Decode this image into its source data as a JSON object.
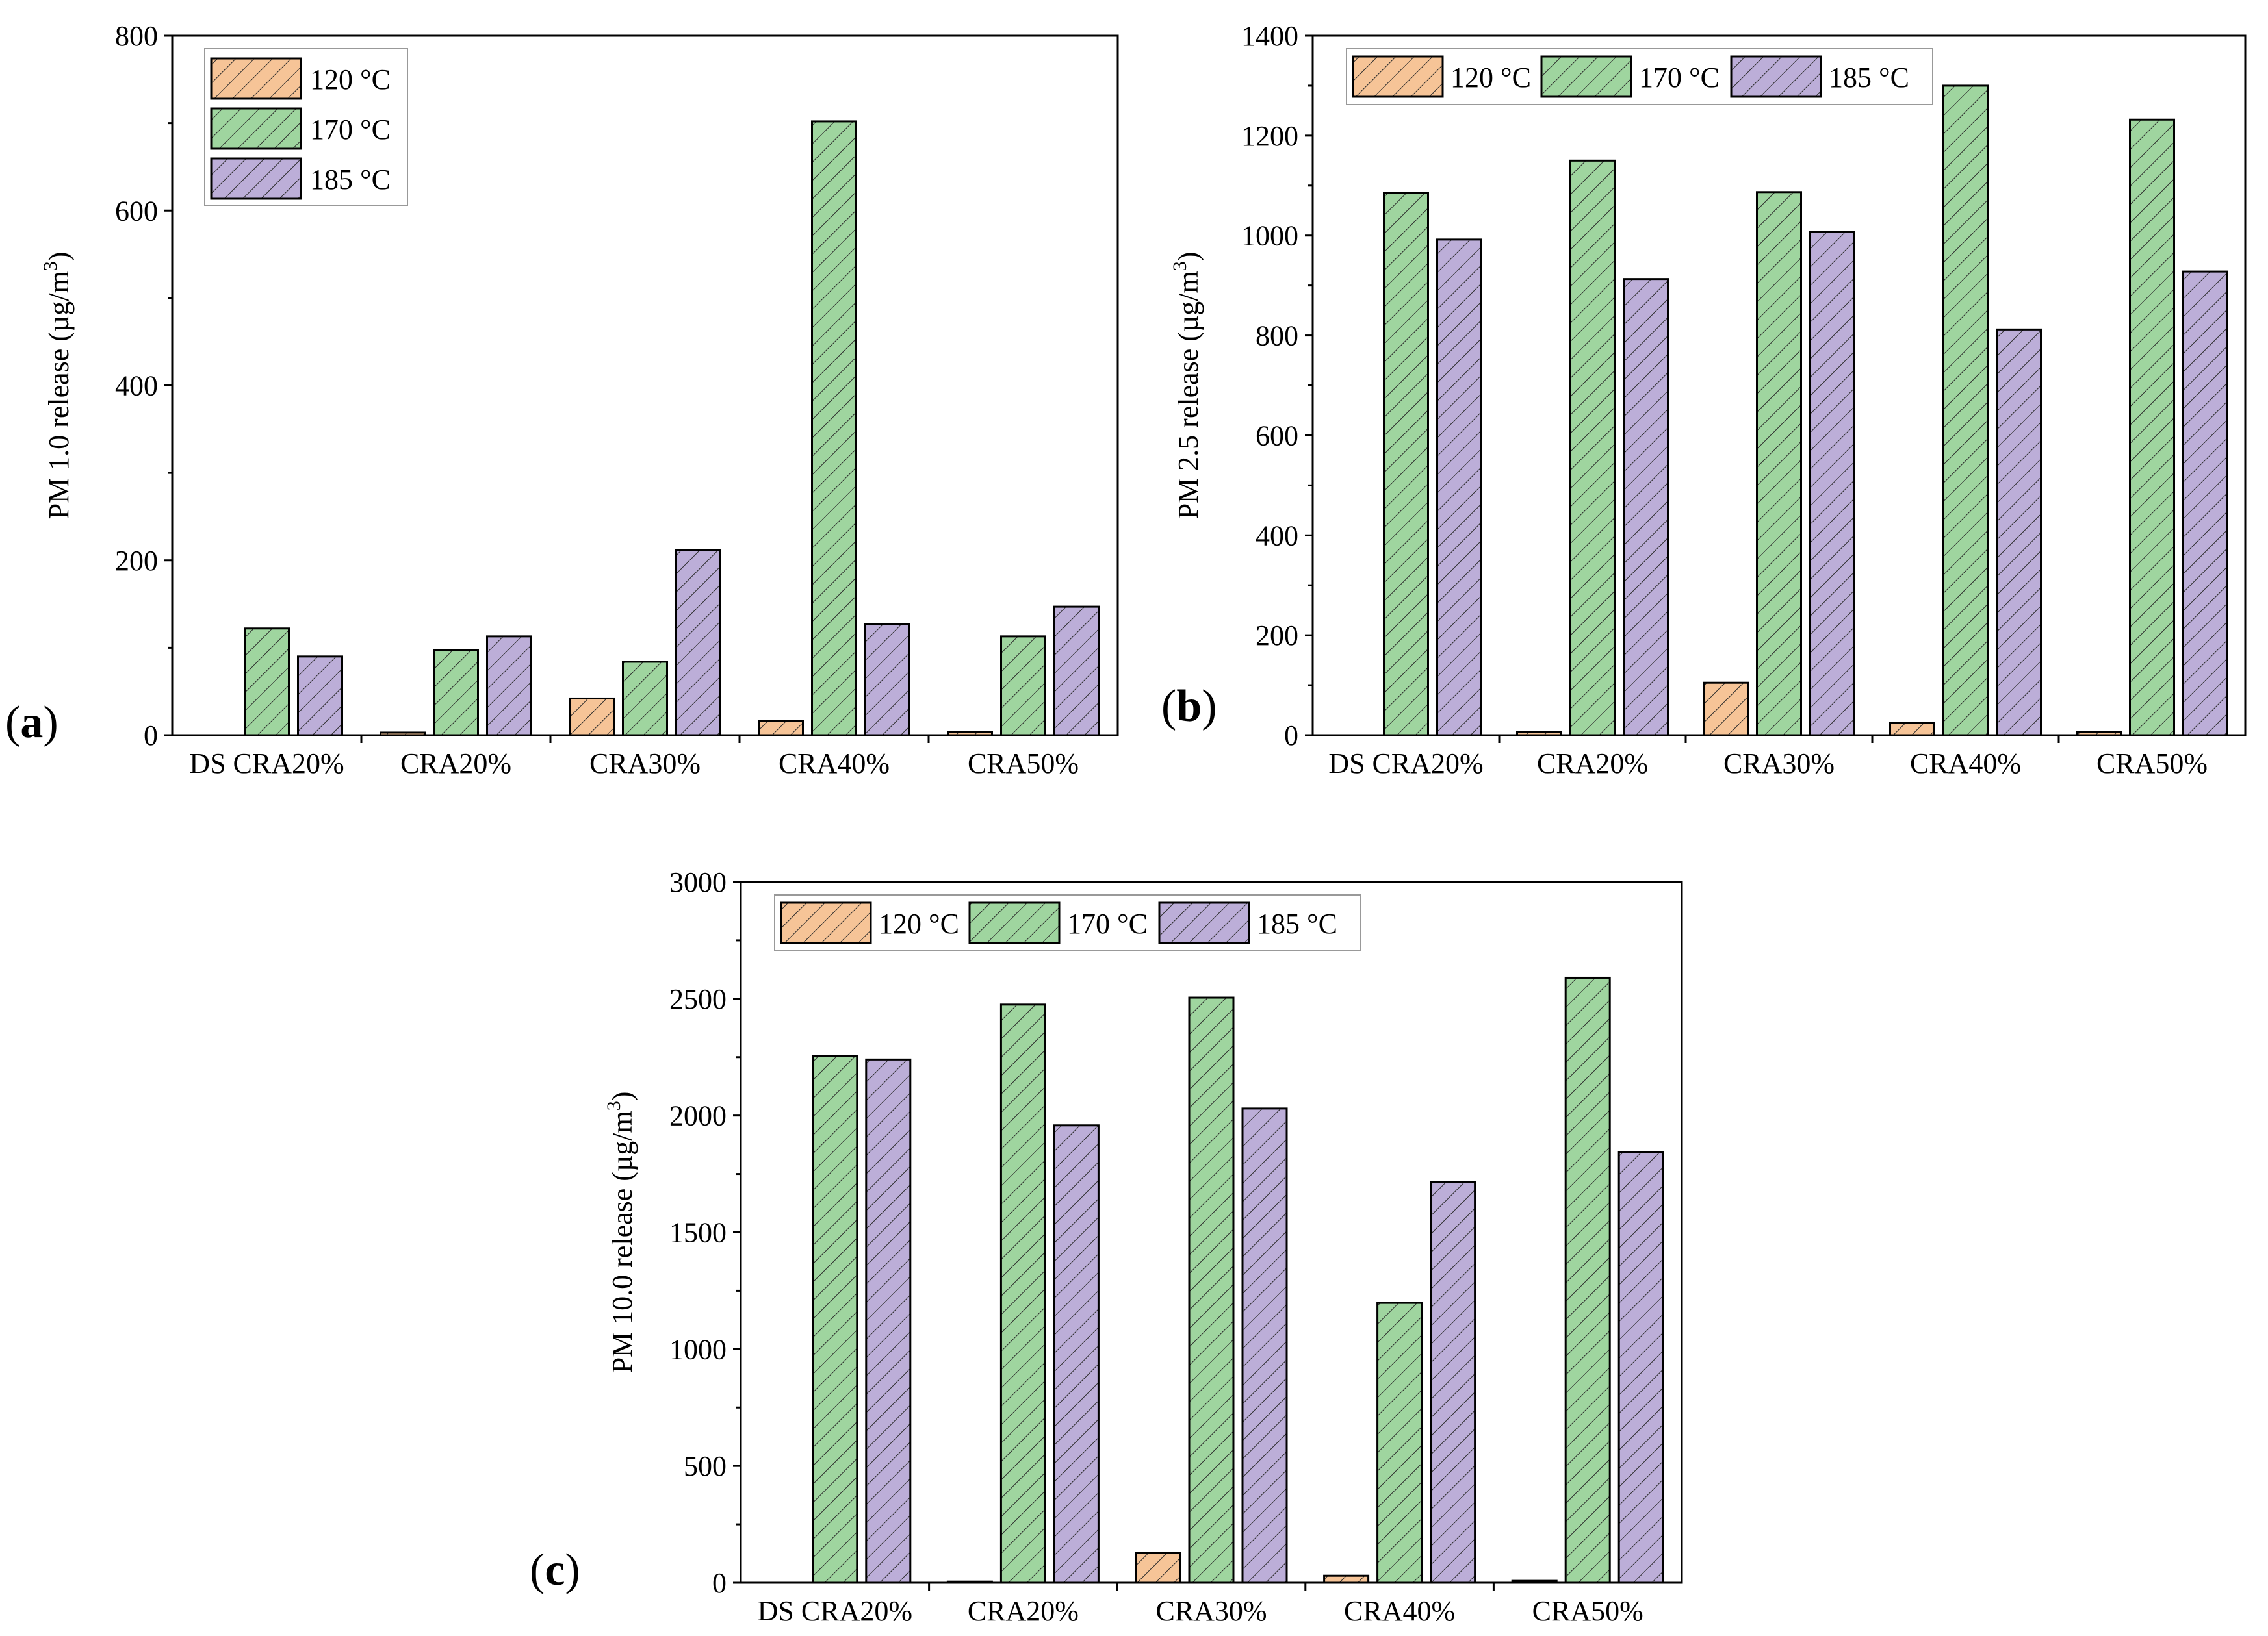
{
  "figure": {
    "background": "#ffffff"
  },
  "legend": [
    {
      "label": "120 °C",
      "color": "#f6c497"
    },
    {
      "label": "170 °C",
      "color": "#9fd59f"
    },
    {
      "label": "185 °C",
      "color": "#bcaed8"
    }
  ],
  "chart_data": [
    {
      "id": "a",
      "panel_label": {
        "open": "(",
        "letter": "a",
        "close": ")"
      },
      "type": "bar",
      "title": "",
      "xlabel": "",
      "ylabel": "PM 1.0 release (µg/m",
      "ylabel_sup": "3",
      "ylabel_close": ")",
      "ylim": [
        0,
        800
      ],
      "yticks": [
        0,
        200,
        400,
        600,
        800
      ],
      "ytick_labels": [
        "0",
        "200",
        "400",
        "600",
        "800"
      ],
      "categories": [
        "DS CRA20%",
        "CRA20%",
        "CRA30%",
        "CRA40%",
        "CRA50%"
      ],
      "series": [
        {
          "name": "120 °C",
          "values": [
            0,
            3,
            42,
            16,
            4
          ]
        },
        {
          "name": "170 °C",
          "values": [
            122,
            97,
            84,
            702,
            113
          ]
        },
        {
          "name": "185 °C",
          "values": [
            90,
            113,
            212,
            127,
            147
          ]
        }
      ],
      "legend_layout": "vertical-top-left",
      "grid": false
    },
    {
      "id": "b",
      "panel_label": {
        "open": "(",
        "letter": "b",
        "close": ")"
      },
      "type": "bar",
      "title": "",
      "xlabel": "",
      "ylabel": "PM 2.5 release (µg/m",
      "ylabel_sup": "3",
      "ylabel_close": ")",
      "ylim": [
        0,
        1400
      ],
      "yticks": [
        0,
        200,
        400,
        600,
        800,
        1000,
        1200,
        1400
      ],
      "ytick_labels": [
        "0",
        "200",
        "400",
        "600",
        "800",
        "1000",
        "1200",
        "1400"
      ],
      "categories": [
        "DS CRA20%",
        "CRA20%",
        "CRA30%",
        "CRA40%",
        "CRA50%"
      ],
      "series": [
        {
          "name": "120 °C",
          "values": [
            0,
            6,
            105,
            25,
            6
          ]
        },
        {
          "name": "170 °C",
          "values": [
            1085,
            1150,
            1087,
            1300,
            1232
          ]
        },
        {
          "name": "185 °C",
          "values": [
            992,
            913,
            1008,
            812,
            928
          ]
        }
      ],
      "legend_layout": "horizontal-top-left",
      "grid": false
    },
    {
      "id": "c",
      "panel_label": {
        "open": "(",
        "letter": "c",
        "close": ")"
      },
      "type": "bar",
      "title": "",
      "xlabel": "",
      "ylabel": "PM 10.0 release (µg/m",
      "ylabel_sup": "3",
      "ylabel_close": ")",
      "ylim": [
        0,
        3000
      ],
      "yticks": [
        0,
        500,
        1000,
        1500,
        2000,
        2500,
        3000
      ],
      "ytick_labels": [
        "0",
        "500",
        "1000",
        "1500",
        "2000",
        "2500",
        "3000"
      ],
      "categories": [
        "DS CRA20%",
        "CRA20%",
        "CRA30%",
        "CRA40%",
        "CRA50%"
      ],
      "series": [
        {
          "name": "120 °C",
          "values": [
            0,
            5,
            128,
            30,
            8
          ]
        },
        {
          "name": "170 °C",
          "values": [
            2255,
            2475,
            2505,
            1198,
            2590
          ]
        },
        {
          "name": "185 °C",
          "values": [
            2240,
            1958,
            2030,
            1715,
            1842
          ]
        }
      ],
      "legend_layout": "horizontal-top-left",
      "grid": false
    }
  ]
}
